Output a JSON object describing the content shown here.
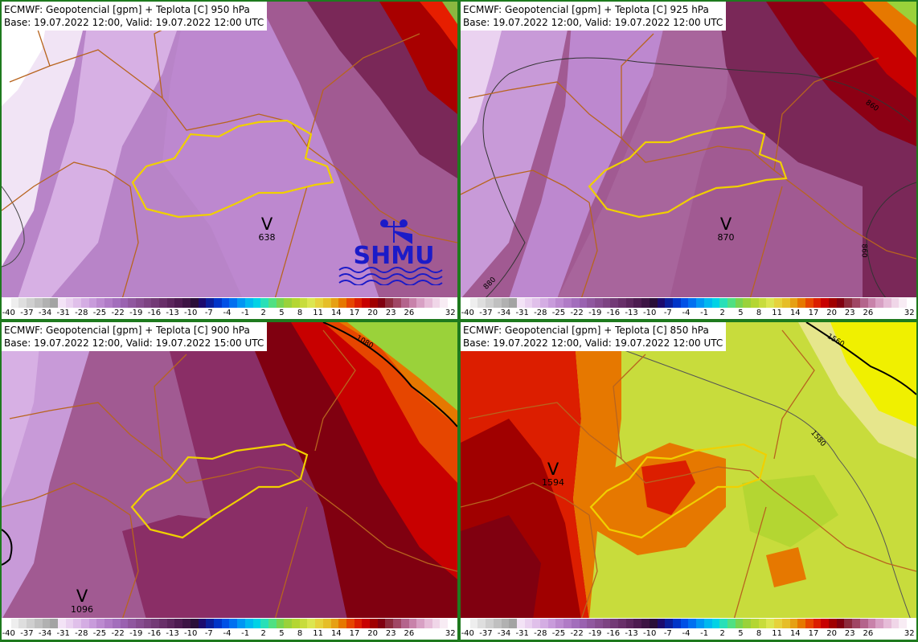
{
  "panels": [
    {
      "id": "p950",
      "title_line1": "ECMWF: Geopotencial [gpm] + Teplota [C] 950 hPa",
      "title_line2": "Base: 19.07.2022 12:00, Valid: 19.07.2022 12:00 UTC",
      "marker_letter": "V",
      "marker_value": "638",
      "contour_labels": []
    },
    {
      "id": "p925",
      "title_line1": "ECMWF: Geopotencial [gpm] + Teplota [C] 925 hPa",
      "title_line2": "Base: 19.07.2022 12:00, Valid: 19.07.2022 12:00 UTC",
      "marker_letter": "V",
      "marker_value": "870",
      "contour_labels": [
        "880",
        "860",
        "860"
      ]
    },
    {
      "id": "p900",
      "title_line1": "ECMWF: Geopotencial [gpm] + Teplota [C] 900 hPa",
      "title_line2": "Base: 19.07.2022 12:00, Valid: 19.07.2022 15:00 UTC",
      "marker_letter": "V",
      "marker_value": "1096",
      "contour_labels": [
        "1080"
      ]
    },
    {
      "id": "p850",
      "title_line1": "ECMWF: Geopotencial [gpm] + Teplota [C] 850 hPa",
      "title_line2": "Base: 19.07.2022 12:00, Valid: 19.07.2022 12:00 UTC",
      "marker_letter": "V",
      "marker_value": "1594",
      "contour_labels": [
        "1560",
        "1580"
      ]
    }
  ],
  "scale": {
    "tick_labels": [
      "-40",
      "-37",
      "-34",
      "-31",
      "-28",
      "-25",
      "-22",
      "-19",
      "-16",
      "-13",
      "-10",
      "-7",
      "-4",
      "-1",
      "2",
      "5",
      "8",
      "11",
      "14",
      "17",
      "20",
      "23",
      "26",
      "32"
    ],
    "colors": [
      "#ffffff",
      "#eeeeee",
      "#dedede",
      "#cfcfcf",
      "#c0c0c0",
      "#b1b1b1",
      "#a3a3a3",
      "#f3e3f6",
      "#ead2f0",
      "#e0c0ea",
      "#d4ade3",
      "#c89bdb",
      "#bc8ad0",
      "#b07bc6",
      "#a36ebc",
      "#9a62b0",
      "#90579f",
      "#874d90",
      "#7d4382",
      "#733a76",
      "#682f69",
      "#5b255c",
      "#4d1b50",
      "#3d1444",
      "#2a0e38",
      "#1c0a6e",
      "#0b1e9a",
      "#0034c8",
      "#0050e6",
      "#0070f0",
      "#0096f3",
      "#00b8f0",
      "#00d2e6",
      "#28e0b8",
      "#50e082",
      "#78d450",
      "#9ad23a",
      "#b4d632",
      "#c8dc3c",
      "#dce650",
      "#e6d23c",
      "#e6be28",
      "#e6a014",
      "#e67800",
      "#e64600",
      "#dc1e00",
      "#c80000",
      "#a00000",
      "#800010",
      "#8c2a3c",
      "#a04664",
      "#b4648c",
      "#c882aa",
      "#d8a0c4",
      "#e6bcd8",
      "#f0d6e8",
      "#f8ecf4",
      "#ffffff"
    ]
  },
  "logo": {
    "text": "SHMU"
  },
  "colors": {
    "border_green": "#1e7a1e",
    "border_line": "#b8641e",
    "slovakia_outline": "#f0d000",
    "contour_line": "#000000"
  }
}
